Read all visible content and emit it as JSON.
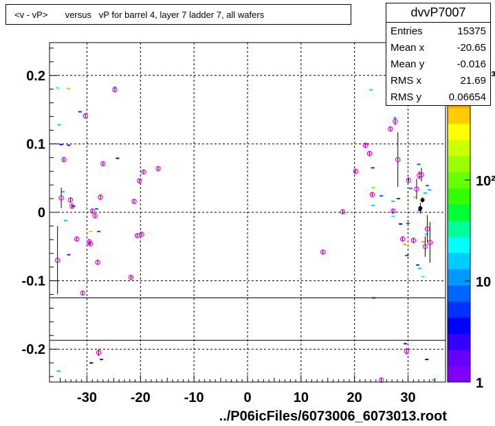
{
  "title": "<v - vP>       versus   vP for barrel 4, layer 7 ladder 7, all wafers",
  "stats": {
    "name": "dvvP7007",
    "rows": [
      {
        "label": "Entries",
        "value": "15375"
      },
      {
        "label": "Mean x",
        "value": "-20.65"
      },
      {
        "label": "Mean y",
        "value": "-0.016"
      },
      {
        "label": "RMS x",
        "value": "21.69"
      },
      {
        "label": "RMS y",
        "value": "0.06654"
      }
    ]
  },
  "xlabel_text": "../P06icFiles/6073006_6073013.root",
  "colors": {
    "profile_marker": "#ff00ff",
    "error_bar": "#000000",
    "band_fill": "#f2f2f2",
    "grid": "#000000"
  },
  "chart_data": {
    "type": "scatter",
    "xlim": [
      -37,
      37
    ],
    "ylim": [
      -0.248,
      0.248
    ],
    "x_ticks": [
      -30,
      -20,
      -10,
      0,
      10,
      20,
      30
    ],
    "x_tick_labels": [
      "-30",
      "-20",
      "-10",
      "0",
      "10",
      "20",
      "30"
    ],
    "y_ticks": [
      -0.2,
      -0.1,
      0,
      0.1,
      0.2
    ],
    "y_tick_labels": [
      "-0.2",
      "-0.1",
      "0",
      "0.1",
      "0.2"
    ],
    "grid": true,
    "z_scale": "log",
    "z_tick_labels": [
      "1",
      "10",
      "10²",
      "10³"
    ],
    "excluded_band": [
      -0.187,
      -0.125
    ],
    "profile_points": [
      {
        "x": -35.5,
        "y": -0.07,
        "err": 0.05
      },
      {
        "x": -34.8,
        "y": 0.021,
        "err": 0.015
      },
      {
        "x": -34.3,
        "y": 0.077,
        "err": 0.004
      },
      {
        "x": -33.1,
        "y": 0.018,
        "err": 0.004
      },
      {
        "x": -32.8,
        "y": 0.009,
        "err": 0.003
      },
      {
        "x": -31.9,
        "y": -0.039,
        "err": 0.003
      },
      {
        "x": -30.8,
        "y": -0.118,
        "err": 0.003
      },
      {
        "x": -30.3,
        "y": 0.141,
        "err": 0.004
      },
      {
        "x": -29.6,
        "y": -0.043,
        "err": 0.004
      },
      {
        "x": -29.4,
        "y": -0.046,
        "err": 0.003
      },
      {
        "x": -29.0,
        "y": 0.002,
        "err": 0.003
      },
      {
        "x": -28.5,
        "y": -0.005,
        "err": 0.003
      },
      {
        "x": -28.0,
        "y": -0.073,
        "err": 0.003
      },
      {
        "x": -27.5,
        "y": 0.022,
        "err": 0.003
      },
      {
        "x": -27.0,
        "y": 0.071,
        "err": 0.003
      },
      {
        "x": -27.8,
        "y": -0.205,
        "err": 0.005
      },
      {
        "x": -24.8,
        "y": 0.179,
        "err": 0.003
      },
      {
        "x": -21.8,
        "y": -0.095,
        "err": 0.003
      },
      {
        "x": -21.2,
        "y": 0.016,
        "err": 0.003
      },
      {
        "x": -20.6,
        "y": -0.034,
        "err": 0.003
      },
      {
        "x": -20.2,
        "y": 0.046,
        "err": 0.003
      },
      {
        "x": -19.8,
        "y": -0.032,
        "err": 0.003
      },
      {
        "x": -19.4,
        "y": 0.059,
        "err": 0.003
      },
      {
        "x": -16.7,
        "y": 0.064,
        "err": 0.003
      },
      {
        "x": 14.1,
        "y": -0.058,
        "err": 0.003
      },
      {
        "x": 17.8,
        "y": 0.001,
        "err": 0.003
      },
      {
        "x": 20.2,
        "y": 0.06,
        "err": 0.003
      },
      {
        "x": 22.0,
        "y": 0.098,
        "err": 0.003
      },
      {
        "x": 22.8,
        "y": 0.086,
        "err": 0.003
      },
      {
        "x": 23.3,
        "y": 0.026,
        "err": 0.003
      },
      {
        "x": 25.0,
        "y": -0.245,
        "err": 0.003
      },
      {
        "x": 26.7,
        "y": 0.122,
        "err": 0.003
      },
      {
        "x": 27.2,
        "y": 0.002,
        "err": 0.003
      },
      {
        "x": 27.6,
        "y": 0.133,
        "err": 0.006
      },
      {
        "x": 28.1,
        "y": 0.077,
        "err": 0.04
      },
      {
        "x": 29.0,
        "y": -0.039,
        "err": 0.004
      },
      {
        "x": 29.7,
        "y": -0.203,
        "err": 0.005
      },
      {
        "x": 30.1,
        "y": 0.047,
        "err": 0.004
      },
      {
        "x": 31.0,
        "y": -0.041,
        "err": 0.004
      },
      {
        "x": 31.6,
        "y": 0.034,
        "err": 0.015
      },
      {
        "x": 32.1,
        "y": 0.054,
        "err": 0.006
      },
      {
        "x": 32.5,
        "y": 0.055,
        "err": 0.01
      },
      {
        "x": 33.2,
        "y": -0.05,
        "err": 0.015
      },
      {
        "x": 33.6,
        "y": -0.024,
        "err": 0.02
      },
      {
        "x": 34.1,
        "y": -0.044,
        "err": 0.03
      }
    ],
    "solid_points": [
      {
        "x": 32.3,
        "y": 0.006,
        "err": 0.008
      },
      {
        "x": 32.7,
        "y": 0.018,
        "err": 0.004
      }
    ],
    "bins": [
      {
        "x": -35.5,
        "y": 0.182,
        "c": "#00ffff"
      },
      {
        "x": -33.5,
        "y": 0.181,
        "c": "#66ff00"
      },
      {
        "x": -35.2,
        "y": 0.128,
        "c": "#00ccff"
      },
      {
        "x": -31.3,
        "y": 0.147,
        "c": "#0033ff"
      },
      {
        "x": -34.8,
        "y": 0.099,
        "c": "#0000ff"
      },
      {
        "x": -33.4,
        "y": 0.098,
        "c": "#3300ff"
      },
      {
        "x": -34.5,
        "y": 0.03,
        "c": "#00ccff"
      },
      {
        "x": -34.0,
        "y": -0.012,
        "c": "#00ccff"
      },
      {
        "x": -33.4,
        "y": -0.062,
        "c": "#0033ff"
      },
      {
        "x": -32.5,
        "y": 0.009,
        "c": "#0033ff"
      },
      {
        "x": -29.3,
        "y": -0.028,
        "c": "#ffcc00"
      },
      {
        "x": -29.2,
        "y": -0.22,
        "c": "#0000ff"
      },
      {
        "x": -28.2,
        "y": 0.005,
        "c": "#0066ff"
      },
      {
        "x": -27.3,
        "y": -0.215,
        "c": "#3300ff"
      },
      {
        "x": -27.5,
        "y": 0.027,
        "c": "#ccff00"
      },
      {
        "x": -27.8,
        "y": -0.028,
        "c": "#9900ff"
      },
      {
        "x": -24.8,
        "y": 0.183,
        "c": "#00ccff"
      },
      {
        "x": -24.3,
        "y": 0.079,
        "c": "#0000ff"
      },
      {
        "x": -21.5,
        "y": -0.095,
        "c": "#ffcc00"
      },
      {
        "x": -35.3,
        "y": -0.232,
        "c": "#00ccff"
      },
      {
        "x": 23.1,
        "y": 0.179,
        "c": "#00ccff"
      },
      {
        "x": 22.3,
        "y": 0.1,
        "c": "#9900ff"
      },
      {
        "x": 23.4,
        "y": 0.065,
        "c": "#0033ff"
      },
      {
        "x": 23.5,
        "y": 0.036,
        "c": "#66ff00"
      },
      {
        "x": 25.0,
        "y": 0.024,
        "c": "#0066ff"
      },
      {
        "x": 23.5,
        "y": 0.01,
        "c": "#00ccff"
      },
      {
        "x": 23.6,
        "y": -0.125,
        "c": "#0000ff"
      },
      {
        "x": 27.5,
        "y": 0.138,
        "c": "#00ffff"
      },
      {
        "x": 27.2,
        "y": 0.016,
        "c": "#00ccff"
      },
      {
        "x": 28.2,
        "y": 0.02,
        "c": "#0033ff"
      },
      {
        "x": 27.2,
        "y": -0.006,
        "c": "#00ffff"
      },
      {
        "x": 28.6,
        "y": -0.017,
        "c": "#0000ff"
      },
      {
        "x": 29.4,
        "y": -0.047,
        "c": "#ff9900"
      },
      {
        "x": 29.8,
        "y": -0.063,
        "c": "#0033ff"
      },
      {
        "x": 29.5,
        "y": -0.192,
        "c": "#3300ff"
      },
      {
        "x": 30.0,
        "y": -0.016,
        "c": "#0066ff"
      },
      {
        "x": 30.5,
        "y": 0.035,
        "c": "#0066ff"
      },
      {
        "x": 31.3,
        "y": 0.022,
        "c": "#66ff00"
      },
      {
        "x": 32.0,
        "y": 0.07,
        "c": "#0066ff"
      },
      {
        "x": 31.8,
        "y": -0.077,
        "c": "#0033ff"
      },
      {
        "x": 32.2,
        "y": -0.082,
        "c": "#00ccff"
      },
      {
        "x": 33.2,
        "y": 0.028,
        "c": "#00ccff"
      },
      {
        "x": 33.6,
        "y": 0.039,
        "c": "#0066ff"
      },
      {
        "x": 34.0,
        "y": 0.033,
        "c": "#00ccff"
      },
      {
        "x": 33.5,
        "y": -0.032,
        "c": "#00ccff"
      },
      {
        "x": 32.8,
        "y": -0.043,
        "c": "#ff9900"
      },
      {
        "x": 32.8,
        "y": -0.094,
        "c": "#00ffff"
      },
      {
        "x": 32.2,
        "y": 0.003,
        "c": "#0000ff"
      },
      {
        "x": 33.5,
        "y": -0.215,
        "c": "#0000ff"
      },
      {
        "x": 34.8,
        "y": -0.245,
        "c": "#00ccff"
      }
    ]
  }
}
